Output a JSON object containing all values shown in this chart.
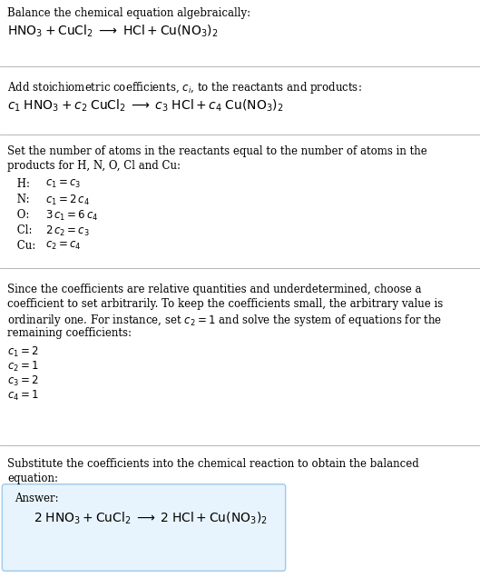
{
  "bg_color": "#ffffff",
  "text_color": "#000000",
  "box_facecolor": "#e8f4fd",
  "box_edgecolor": "#a0c8e8",
  "fig_width": 5.29,
  "fig_height": 6.47,
  "dpi": 100,
  "fs_body": 8.5,
  "fs_eq": 10.0,
  "fs_answer_eq": 10.0,
  "lm": 0.015,
  "line_color": "#aaaaaa",
  "section1_text1": "Balance the chemical equation algebraically:",
  "section1_eq": "$\\mathrm{HNO_3 + CuCl_2 \\;\\longrightarrow\\; HCl + Cu(NO_3)_2}$",
  "section2_text1a": "Add stoichiometric coefficients, ",
  "section2_text1b": "$c_i$",
  "section2_text1c": ", to the reactants and products:",
  "section2_eq": "$c_1\\; \\mathrm{HNO_3} + c_2\\; \\mathrm{CuCl_2} \\;\\longrightarrow\\; c_3\\; \\mathrm{HCl} + c_4\\; \\mathrm{Cu(NO_3)_2}$",
  "section3_text1": "Set the number of atoms in the reactants equal to the number of atoms in the",
  "section3_text2": "products for H, N, O, Cl and Cu:",
  "atom_labels": [
    " H:",
    " N:",
    " O:",
    " Cl:",
    " Cu:"
  ],
  "atom_eqs": [
    "$c_1 = c_3$",
    "$c_1 = 2\\,c_4$",
    "$3\\,c_1 = 6\\,c_4$",
    "$2\\,c_2 = c_3$",
    "$c_2 = c_4$"
  ],
  "section4_texts": [
    "Since the coefficients are relative quantities and underdetermined, choose a",
    "coefficient to set arbitrarily. To keep the coefficients small, the arbitrary value is",
    "ordinarily one. For instance, set $c_2 = 1$ and solve the system of equations for the",
    "remaining coefficients:"
  ],
  "coeff_eqs": [
    "$c_1 = 2$",
    "$c_2 = 1$",
    "$c_3 = 2$",
    "$c_4 = 1$"
  ],
  "section5_text1": "Substitute the coefficients into the chemical reaction to obtain the balanced",
  "section5_text2": "equation:",
  "answer_label": "Answer:",
  "answer_eq": "$\\mathrm{2\\; HNO_3 + CuCl_2 \\;\\longrightarrow\\; 2\\; HCl + Cu(NO_3)_2}$"
}
